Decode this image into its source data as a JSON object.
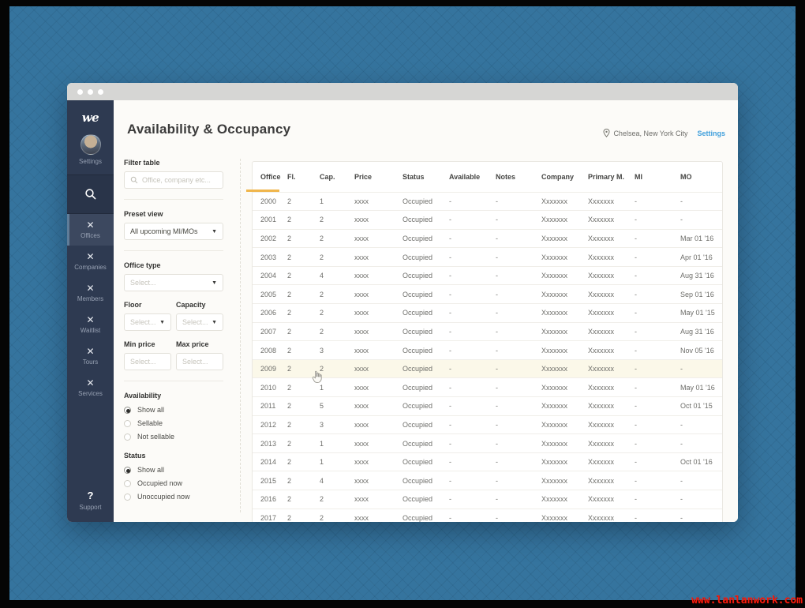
{
  "watermark": "www.lanlanwork.com",
  "sidebar": {
    "logo": "we",
    "profile_label": "Settings",
    "items": [
      {
        "label": "Offices",
        "active": true
      },
      {
        "label": "Companies",
        "active": false
      },
      {
        "label": "Members",
        "active": false
      },
      {
        "label": "Waitlist",
        "active": false
      },
      {
        "label": "Tours",
        "active": false
      },
      {
        "label": "Services",
        "active": false
      }
    ],
    "support": {
      "icon": "?",
      "label": "Support"
    }
  },
  "header": {
    "title": "Availability & Occupancy",
    "location": "Chelsea, New York City",
    "settings_link": "Settings"
  },
  "filters": {
    "filter_table_label": "Filter table",
    "search_placeholder": "Office, company etc...",
    "preset_view_label": "Preset view",
    "preset_view_value": "All upcoming MI/MOs",
    "office_type_label": "Office type",
    "office_type_value": "Select...",
    "floor_label": "Floor",
    "floor_value": "Select...",
    "capacity_label": "Capacity",
    "capacity_value": "Select...",
    "min_price_label": "Min price",
    "min_price_placeholder": "Select...",
    "max_price_label": "Max price",
    "max_price_placeholder": "Select...",
    "availability": {
      "label": "Availability",
      "options": [
        "Show all",
        "Sellable",
        "Not sellable"
      ],
      "selected": "Show all"
    },
    "status": {
      "label": "Status",
      "options": [
        "Show all",
        "Occupied now",
        "Unoccupied now"
      ],
      "selected": "Show all"
    }
  },
  "table": {
    "columns": [
      "Office",
      "Fl.",
      "Cap.",
      "Price",
      "Status",
      "Available",
      "Notes",
      "Company",
      "Primary M.",
      "MI",
      "MO"
    ],
    "sorted_column": "Office",
    "highlighted_office": "2009",
    "rows": [
      [
        "2000",
        "2",
        "1",
        "xxxx",
        "Occupied",
        "-",
        "-",
        "Xxxxxxx",
        "Xxxxxxx",
        "-",
        "-"
      ],
      [
        "2001",
        "2",
        "2",
        "xxxx",
        "Occupied",
        "-",
        "-",
        "Xxxxxxx",
        "Xxxxxxx",
        "-",
        "-"
      ],
      [
        "2002",
        "2",
        "2",
        "xxxx",
        "Occupied",
        "-",
        "-",
        "Xxxxxxx",
        "Xxxxxxx",
        "-",
        "Mar 01 '16"
      ],
      [
        "2003",
        "2",
        "2",
        "xxxx",
        "Occupied",
        "-",
        "-",
        "Xxxxxxx",
        "Xxxxxxx",
        "-",
        "Apr 01 '16"
      ],
      [
        "2004",
        "2",
        "4",
        "xxxx",
        "Occupied",
        "-",
        "-",
        "Xxxxxxx",
        "Xxxxxxx",
        "-",
        "Aug 31 '16"
      ],
      [
        "2005",
        "2",
        "2",
        "xxxx",
        "Occupied",
        "-",
        "-",
        "Xxxxxxx",
        "Xxxxxxx",
        "-",
        "Sep 01 '16"
      ],
      [
        "2006",
        "2",
        "2",
        "xxxx",
        "Occupied",
        "-",
        "-",
        "Xxxxxxx",
        "Xxxxxxx",
        "-",
        "May 01 '15"
      ],
      [
        "2007",
        "2",
        "2",
        "xxxx",
        "Occupied",
        "-",
        "-",
        "Xxxxxxx",
        "Xxxxxxx",
        "-",
        "Aug 31 '16"
      ],
      [
        "2008",
        "2",
        "3",
        "xxxx",
        "Occupied",
        "-",
        "-",
        "Xxxxxxx",
        "Xxxxxxx",
        "-",
        "Nov 05 '16"
      ],
      [
        "2009",
        "2",
        "2",
        "xxxx",
        "Occupied",
        "-",
        "-",
        "Xxxxxxx",
        "Xxxxxxx",
        "-",
        "-"
      ],
      [
        "2010",
        "2",
        "1",
        "xxxx",
        "Occupied",
        "-",
        "-",
        "Xxxxxxx",
        "Xxxxxxx",
        "-",
        "May 01 '16"
      ],
      [
        "2011",
        "2",
        "5",
        "xxxx",
        "Occupied",
        "-",
        "-",
        "Xxxxxxx",
        "Xxxxxxx",
        "-",
        "Oct 01 '15"
      ],
      [
        "2012",
        "2",
        "3",
        "xxxx",
        "Occupied",
        "-",
        "-",
        "Xxxxxxx",
        "Xxxxxxx",
        "-",
        "-"
      ],
      [
        "2013",
        "2",
        "1",
        "xxxx",
        "Occupied",
        "-",
        "-",
        "Xxxxxxx",
        "Xxxxxxx",
        "-",
        "-"
      ],
      [
        "2014",
        "2",
        "1",
        "xxxx",
        "Occupied",
        "-",
        "-",
        "Xxxxxxx",
        "Xxxxxxx",
        "-",
        "Oct 01 '16"
      ],
      [
        "2015",
        "2",
        "4",
        "xxxx",
        "Occupied",
        "-",
        "-",
        "Xxxxxxx",
        "Xxxxxxx",
        "-",
        "-"
      ],
      [
        "2016",
        "2",
        "2",
        "xxxx",
        "Occupied",
        "-",
        "-",
        "Xxxxxxx",
        "Xxxxxxx",
        "-",
        "-"
      ],
      [
        "2017",
        "2",
        "2",
        "xxxx",
        "Occupied",
        "-",
        "-",
        "Xxxxxxx",
        "Xxxxxxx",
        "-",
        "-"
      ]
    ]
  },
  "colors": {
    "desktop_blue": "#35749e",
    "sidebar_navy": "#2e3a51",
    "accent_orange": "#f0b64c",
    "link_blue": "#41a0dc",
    "highlight_row": "#fbf8e9",
    "watermark_red": "#f61c0d"
  }
}
